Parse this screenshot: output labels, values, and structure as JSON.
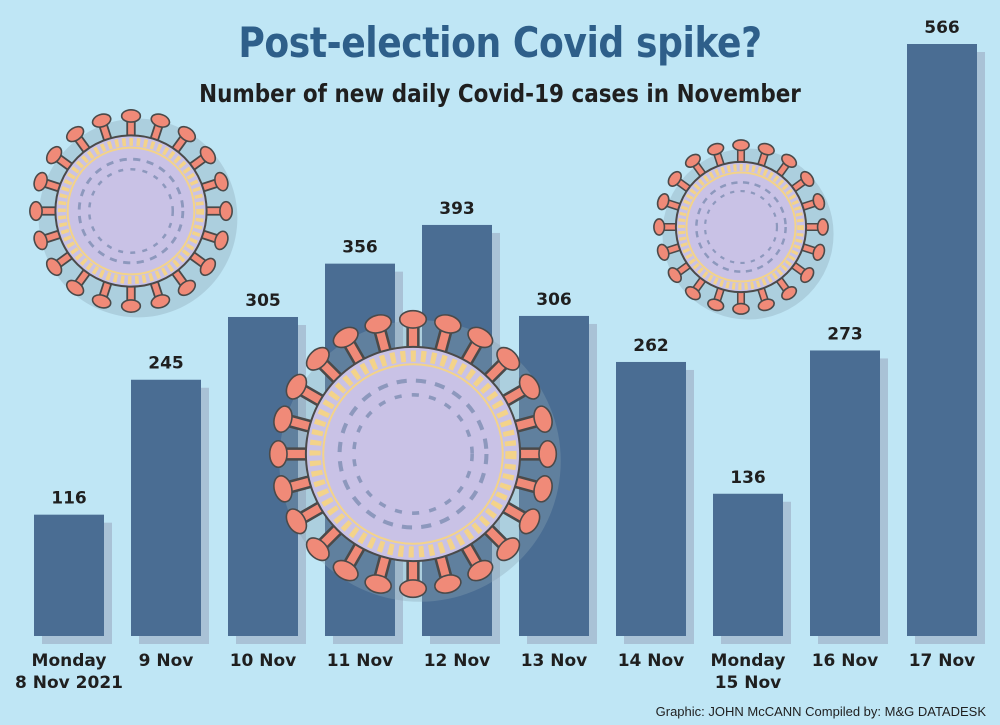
{
  "header": {
    "title": "Post-election Covid spike?",
    "subtitle": "Number of new daily Covid-19 cases in November"
  },
  "footer": {
    "credit": "Graphic: JOHN McCANN  Compiled by: M&G DATADESK"
  },
  "colors": {
    "background": "#bfe6f5",
    "bar": "#4a6d93",
    "bar_shadow": "#a9c2d6",
    "title": "#2e5f8a",
    "text": "#1f1f1f",
    "virus_body": "#c9c2e6",
    "virus_ring": "#f3d38a",
    "virus_spike": "#f08a78",
    "virus_outline": "#4a4a4a",
    "virus_rna": "#8d98bd"
  },
  "decorations": [
    "coronavirus-illustration",
    "coronavirus-illustration",
    "coronavirus-illustration"
  ],
  "chart_data": {
    "type": "bar",
    "title": "Post-election Covid spike?",
    "subtitle": "Number of new daily Covid-19 cases in November",
    "xlabel": "",
    "ylabel": "",
    "ylim": [
      0,
      566
    ],
    "grid": false,
    "legend": "none",
    "categories": [
      [
        "Monday",
        "8 Nov 2021"
      ],
      [
        "9 Nov"
      ],
      [
        "10 Nov"
      ],
      [
        "11 Nov"
      ],
      [
        "12 Nov"
      ],
      [
        "13 Nov"
      ],
      [
        "14 Nov"
      ],
      [
        "Monday",
        "15 Nov"
      ],
      [
        "16 Nov"
      ],
      [
        "17 Nov"
      ]
    ],
    "values": [
      116,
      245,
      305,
      356,
      393,
      306,
      262,
      136,
      273,
      566
    ]
  }
}
